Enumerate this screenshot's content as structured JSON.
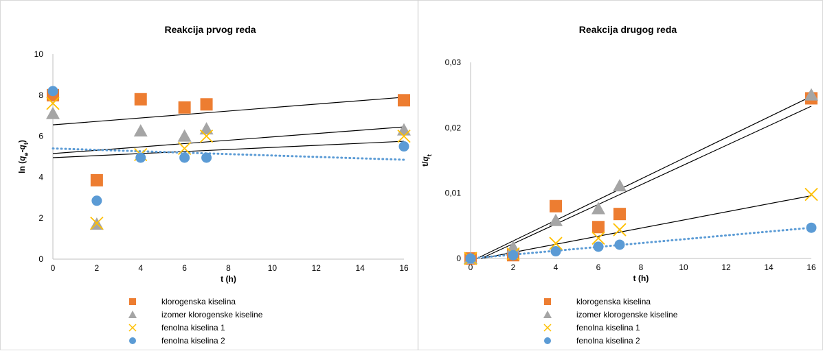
{
  "chart_data": [
    {
      "type": "scatter",
      "title": "Reakcija prvog reda",
      "xlabel": "t (h)",
      "ylabel_parts": [
        "ln (",
        "q",
        "e",
        "-",
        "q",
        "t",
        ")"
      ],
      "xlim": [
        0,
        16
      ],
      "ylim": [
        0,
        10
      ],
      "xticks": [
        "0",
        "2",
        "4",
        "6",
        "8",
        "10",
        "12",
        "14",
        "16"
      ],
      "yticks": [
        "0",
        "2",
        "4",
        "6",
        "8",
        "10"
      ],
      "grid": false,
      "legend_position": "bottom",
      "series": [
        {
          "name": "klorogenska kiselina",
          "marker": "square",
          "color": "#ed7d31",
          "x": [
            0,
            2,
            4,
            6,
            7,
            16
          ],
          "y": [
            8.0,
            3.85,
            7.8,
            7.4,
            7.55,
            7.75
          ]
        },
        {
          "name": "izomer klorogenske kiseline",
          "marker": "triangle",
          "color": "#a5a5a5",
          "x": [
            0,
            2,
            4,
            6,
            7,
            16
          ],
          "y": [
            7.1,
            1.7,
            6.25,
            6.0,
            6.35,
            6.3
          ]
        },
        {
          "name": "fenolna kiselina 1",
          "marker": "x",
          "color": "#ffc000",
          "x": [
            0,
            2,
            4,
            6,
            7,
            16
          ],
          "y": [
            7.6,
            1.75,
            5.1,
            5.4,
            6.0,
            6.0
          ]
        },
        {
          "name": "fenolna kiselina 2",
          "marker": "circle",
          "color": "#5b9bd5",
          "x": [
            0,
            2,
            4,
            6,
            7,
            16
          ],
          "y": [
            8.2,
            2.85,
            4.95,
            4.95,
            4.95,
            5.5
          ]
        }
      ],
      "trendlines": [
        {
          "x": [
            0,
            16
          ],
          "y": [
            6.55,
            7.9
          ],
          "style": "solid",
          "color": "#000000"
        },
        {
          "x": [
            0,
            16
          ],
          "y": [
            5.15,
            6.45
          ],
          "style": "solid",
          "color": "#000000"
        },
        {
          "x": [
            0,
            16
          ],
          "y": [
            4.95,
            5.75
          ],
          "style": "solid",
          "color": "#000000"
        },
        {
          "x": [
            0,
            16
          ],
          "y": [
            5.4,
            4.85
          ],
          "style": "dotted",
          "color": "#5b9bd5"
        }
      ]
    },
    {
      "type": "scatter",
      "title": "Reakcija drugog reda",
      "xlabel": "t (h)",
      "ylabel_parts": [
        "t/",
        "q",
        "t"
      ],
      "xlim": [
        0,
        16
      ],
      "ylim": [
        0,
        0.03
      ],
      "xticks": [
        "0",
        "2",
        "4",
        "6",
        "8",
        "10",
        "12",
        "14",
        "16"
      ],
      "yticks": [
        "0",
        "0,01",
        "0,02",
        "0,03"
      ],
      "grid": false,
      "legend_position": "bottom",
      "series": [
        {
          "name": "klorogenska kiselina",
          "marker": "square",
          "color": "#ed7d31",
          "x": [
            0,
            2,
            4,
            6,
            7,
            16
          ],
          "y": [
            0.0,
            0.0005,
            0.008,
            0.0048,
            0.0068,
            0.0245
          ]
        },
        {
          "name": "izomer klorogenske kiseline",
          "marker": "triangle",
          "color": "#a5a5a5",
          "x": [
            0,
            2,
            4,
            6,
            7,
            16
          ],
          "y": [
            0.0,
            0.0017,
            0.0058,
            0.0076,
            0.0111,
            0.025
          ]
        },
        {
          "name": "fenolna kiselina 1",
          "marker": "x",
          "color": "#ffc000",
          "x": [
            0,
            2,
            4,
            6,
            7,
            16
          ],
          "y": [
            0.0,
            0.0007,
            0.0023,
            0.0031,
            0.0044,
            0.0098
          ]
        },
        {
          "name": "fenolna kiselina 2",
          "marker": "circle",
          "color": "#5b9bd5",
          "x": [
            0,
            2,
            4,
            6,
            7,
            16
          ],
          "y": [
            0.0,
            0.0005,
            0.0011,
            0.0018,
            0.0021,
            0.0047
          ]
        }
      ],
      "trendlines": [
        {
          "x": [
            0.3,
            16
          ],
          "y": [
            0.0,
            0.0248
          ],
          "style": "solid",
          "color": "#000000"
        },
        {
          "x": [
            0.5,
            16
          ],
          "y": [
            0.0,
            0.0233
          ],
          "style": "solid",
          "color": "#000000"
        },
        {
          "x": [
            0.5,
            16
          ],
          "y": [
            0.0,
            0.0096
          ],
          "style": "solid",
          "color": "#000000"
        },
        {
          "x": [
            0.0,
            16
          ],
          "y": [
            0.0,
            0.0047
          ],
          "style": "dotted",
          "color": "#5b9bd5"
        }
      ]
    }
  ]
}
